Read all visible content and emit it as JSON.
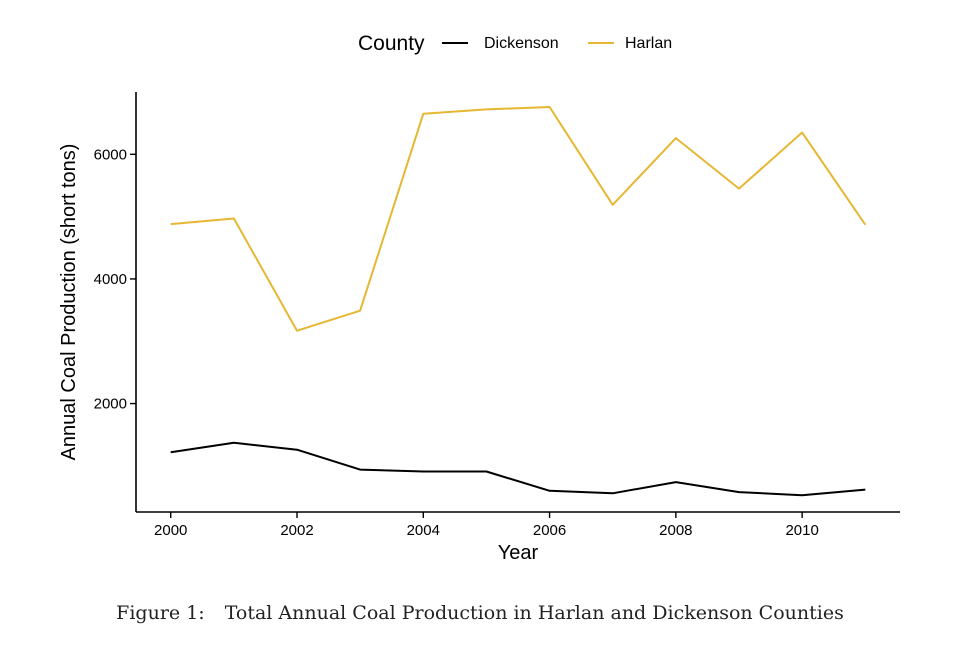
{
  "chart_data": {
    "type": "line",
    "xlabel": "Year",
    "ylabel": "Annual Coal Production (short tons)",
    "legend": {
      "title": "County",
      "position": "top"
    },
    "xlim": [
      1999.45,
      2011.55
    ],
    "ylim": [
      260,
      7000
    ],
    "x_ticks": [
      2000,
      2002,
      2004,
      2006,
      2008,
      2010
    ],
    "y_ticks": [
      2000,
      4000,
      6000
    ],
    "x": [
      2000,
      2001,
      2002,
      2003,
      2004,
      2005,
      2006,
      2007,
      2008,
      2009,
      2010,
      2011
    ],
    "series": [
      {
        "name": "Dickenson",
        "color": "#000000",
        "values": [
          1220,
          1370,
          1260,
          940,
          910,
          910,
          600,
          560,
          740,
          580,
          530,
          620
        ]
      },
      {
        "name": "Harlan",
        "color": "#E6B733",
        "values": [
          4880,
          4970,
          3170,
          3490,
          6650,
          6720,
          6760,
          5190,
          6260,
          5450,
          6350,
          4870
        ]
      }
    ],
    "grid": false
  },
  "caption": {
    "label": "Figure 1:",
    "text": "Total Annual Coal Production in Harlan and Dickenson Counties"
  }
}
